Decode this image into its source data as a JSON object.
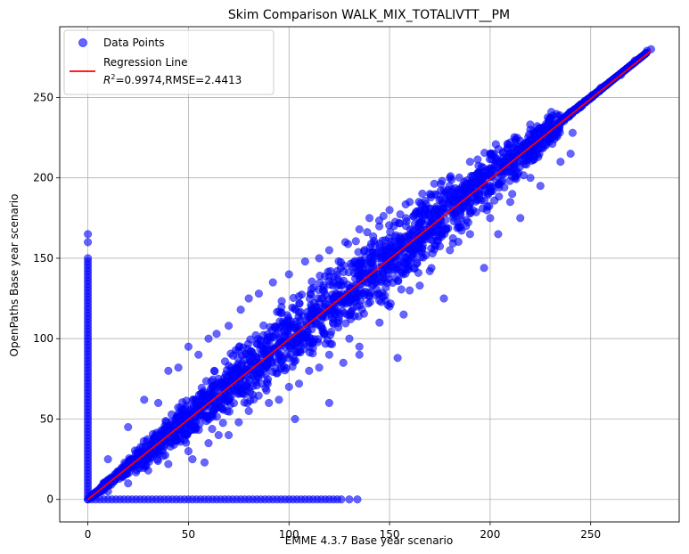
{
  "chart_data": {
    "type": "scatter",
    "title": "Skim Comparison WALK_MIX_TOTALIVTT__PM",
    "xlabel": "EMME 4.3.7 Base year scenario",
    "ylabel": "OpenPaths Base year scenario",
    "xlim": [
      -14,
      294
    ],
    "ylim": [
      -14,
      294
    ],
    "xticks": [
      0,
      50,
      100,
      150,
      200,
      250
    ],
    "yticks": [
      0,
      50,
      100,
      150,
      200,
      250
    ],
    "grid": true,
    "legend_position": "top-left",
    "colors": {
      "points": "#0000ff",
      "regression": "#ff0000"
    },
    "series": [
      {
        "name": "Data Points",
        "kind": "scatter"
      },
      {
        "name": "Regression Line",
        "kind": "line",
        "x": [
          0,
          280
        ],
        "y": [
          0,
          279
        ],
        "stats": "$R^2$=0.9974,RMSE=2.4413"
      }
    ],
    "legend": {
      "entries": [
        "Data Points",
        "Regression Line"
      ],
      "stats_prefix": "R",
      "stats_superscript": "2",
      "stats_rest": "=0.9974,RMSE=2.4413"
    },
    "points": {
      "diagonal_core": [
        [
          2,
          3
        ],
        [
          8,
          9
        ],
        [
          15,
          14
        ],
        [
          22,
          24
        ],
        [
          30,
          29
        ],
        [
          38,
          39
        ],
        [
          45,
          44
        ],
        [
          55,
          56
        ],
        [
          65,
          64
        ],
        [
          75,
          77
        ],
        [
          85,
          84
        ],
        [
          95,
          97
        ],
        [
          105,
          104
        ],
        [
          115,
          117
        ],
        [
          125,
          124
        ],
        [
          135,
          136
        ],
        [
          145,
          144
        ],
        [
          155,
          157
        ],
        [
          165,
          164
        ],
        [
          175,
          176
        ],
        [
          185,
          184
        ],
        [
          195,
          196
        ],
        [
          205,
          204
        ],
        [
          215,
          216
        ],
        [
          225,
          224
        ],
        [
          235,
          235
        ],
        [
          245,
          244
        ],
        [
          255,
          256
        ],
        [
          265,
          264
        ],
        [
          272,
          273
        ],
        [
          278,
          279
        ],
        [
          280,
          280
        ]
      ],
      "upper_spread": [
        [
          10,
          25
        ],
        [
          20,
          45
        ],
        [
          28,
          62
        ],
        [
          35,
          60
        ],
        [
          40,
          80
        ],
        [
          45,
          82
        ],
        [
          50,
          95
        ],
        [
          55,
          90
        ],
        [
          60,
          100
        ],
        [
          64,
          103
        ],
        [
          70,
          108
        ],
        [
          76,
          118
        ],
        [
          80,
          125
        ],
        [
          85,
          128
        ],
        [
          92,
          135
        ],
        [
          100,
          140
        ],
        [
          108,
          148
        ],
        [
          115,
          150
        ],
        [
          120,
          155
        ],
        [
          128,
          160
        ],
        [
          135,
          168
        ],
        [
          140,
          175
        ],
        [
          150,
          180
        ],
        [
          160,
          185
        ],
        [
          170,
          190
        ],
        [
          180,
          200
        ],
        [
          190,
          210
        ],
        [
          200,
          215
        ],
        [
          210,
          222
        ],
        [
          220,
          230
        ],
        [
          230,
          237
        ]
      ],
      "lower_spread": [
        [
          10,
          5
        ],
        [
          20,
          10
        ],
        [
          30,
          18
        ],
        [
          40,
          22
        ],
        [
          50,
          30
        ],
        [
          58,
          23
        ],
        [
          60,
          35
        ],
        [
          70,
          40
        ],
        [
          75,
          48
        ],
        [
          80,
          55
        ],
        [
          90,
          60
        ],
        [
          95,
          62
        ],
        [
          100,
          70
        ],
        [
          105,
          72
        ],
        [
          110,
          80
        ],
        [
          115,
          82
        ],
        [
          120,
          90
        ],
        [
          127,
          85
        ],
        [
          130,
          100
        ],
        [
          135,
          90
        ],
        [
          145,
          110
        ],
        [
          150,
          120
        ],
        [
          160,
          130
        ],
        [
          170,
          142
        ],
        [
          180,
          155
        ],
        [
          190,
          165
        ],
        [
          200,
          175
        ],
        [
          210,
          185
        ],
        [
          220,
          200
        ],
        [
          225,
          195
        ],
        [
          240,
          215
        ]
      ],
      "outliers": [
        [
          48,
          37
        ],
        [
          52,
          25
        ],
        [
          65,
          40
        ],
        [
          103,
          50
        ],
        [
          120,
          60
        ],
        [
          135,
          95
        ],
        [
          154,
          88
        ],
        [
          157,
          115
        ],
        [
          165,
          133
        ],
        [
          177,
          125
        ],
        [
          182,
          173
        ],
        [
          188,
          170
        ],
        [
          197,
          144
        ],
        [
          204,
          165
        ],
        [
          211,
          190
        ],
        [
          215,
          175
        ],
        [
          235,
          210
        ],
        [
          241,
          228
        ]
      ],
      "vertical_band": {
        "x": 0,
        "y_from": 0,
        "y_to": 150,
        "extra_y": [
          160,
          165
        ]
      },
      "horizontal_band": {
        "y": 0,
        "x_from": 0,
        "x_to": 126,
        "extra_x": [
          130,
          134
        ]
      }
    }
  }
}
